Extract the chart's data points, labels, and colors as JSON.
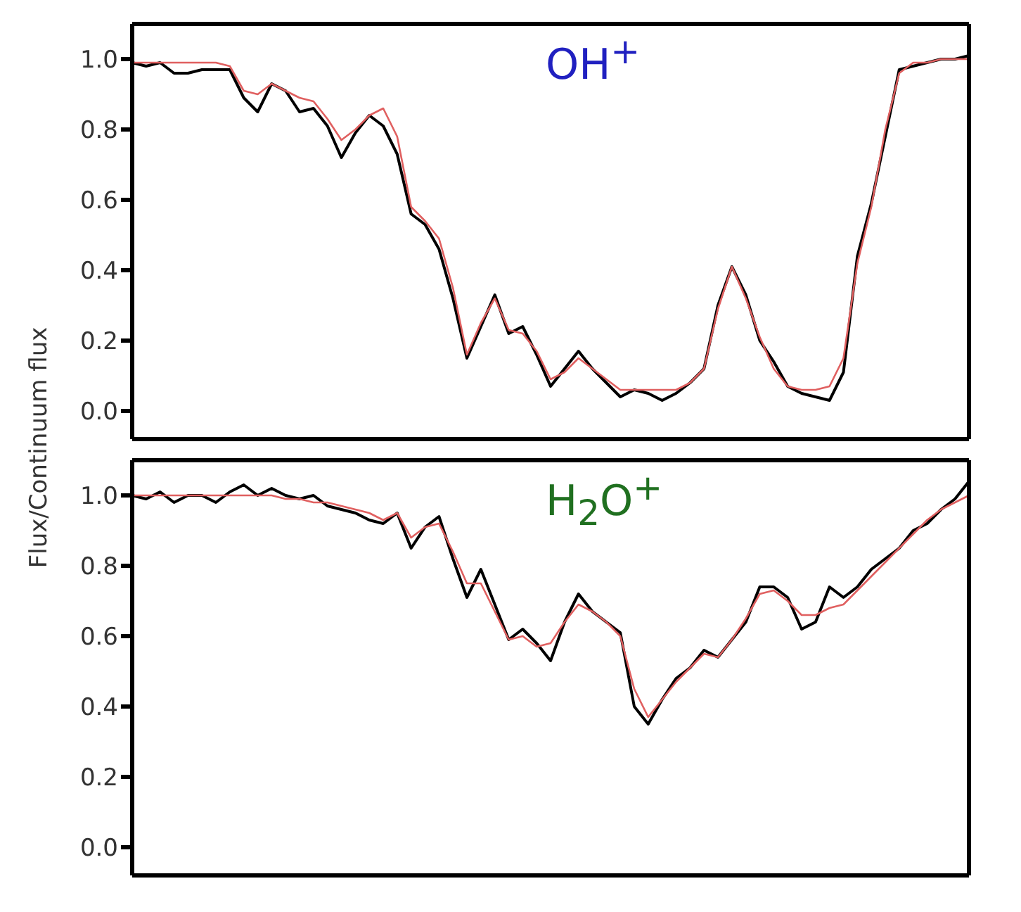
{
  "chart_data": [
    {
      "type": "line",
      "ylabel": "Flux/Continuum flux",
      "annotations": [
        "OH$^{+}$"
      ],
      "tick_labels": "y",
      "ylim": [
        -0.08,
        1.1
      ],
      "yticks": [
        {
          "value": 0,
          "label": "0.0"
        },
        {
          "value": 0.2,
          "label": "0.2"
        },
        {
          "value": 0.4,
          "label": "0.4"
        },
        {
          "value": 0.6,
          "label": "0.6"
        },
        {
          "value": 0.8,
          "label": "0.8"
        },
        {
          "value": 1,
          "label": "1.0"
        }
      ],
      "categories": [
        null,
        null,
        null,
        null,
        null,
        null,
        null,
        null,
        null,
        null,
        null,
        null,
        null,
        null,
        null,
        null,
        null,
        null,
        null,
        null,
        null,
        null,
        null,
        null,
        null,
        null,
        null,
        null,
        null,
        null,
        null,
        null,
        null,
        null,
        null,
        null,
        null,
        null,
        null,
        null,
        null,
        null,
        null,
        null,
        null,
        null,
        null,
        null,
        null,
        null,
        null,
        null,
        null,
        null,
        null,
        null,
        null,
        null,
        null,
        null,
        null
      ],
      "series": [
        {
          "color": "#000000",
          "values": [
            0.99,
            0.98,
            0.99,
            0.96,
            0.96,
            0.97,
            0.97,
            0.97,
            0.89,
            0.85,
            0.93,
            0.91,
            0.85,
            0.86,
            0.81,
            0.72,
            0.79,
            0.84,
            0.81,
            0.73,
            0.56,
            0.53,
            0.46,
            0.32,
            0.15,
            0.24,
            0.33,
            0.22,
            0.24,
            0.16,
            0.07,
            0.12,
            0.17,
            0.12,
            0.08,
            0.04,
            0.06,
            0.05,
            0.03,
            0.05,
            0.08,
            0.12,
            0.3,
            0.41,
            0.33,
            0.2,
            0.14,
            0.07,
            0.05,
            0.04,
            0.03,
            0.11,
            0.44,
            0.59,
            0.78,
            0.97,
            0.98,
            0.99,
            1.0,
            1.0,
            1.01
          ]
        },
        {
          "color": "#e06060",
          "values": [
            0.99,
            0.99,
            0.99,
            0.99,
            0.99,
            0.99,
            0.99,
            0.98,
            0.91,
            0.9,
            0.93,
            0.91,
            0.89,
            0.88,
            0.83,
            0.77,
            0.8,
            0.84,
            0.86,
            0.78,
            0.58,
            0.54,
            0.49,
            0.35,
            0.16,
            0.25,
            0.32,
            0.23,
            0.22,
            0.17,
            0.09,
            0.11,
            0.15,
            0.12,
            0.09,
            0.06,
            0.06,
            0.06,
            0.06,
            0.06,
            0.08,
            0.12,
            0.29,
            0.41,
            0.32,
            0.21,
            0.12,
            0.07,
            0.06,
            0.06,
            0.07,
            0.15,
            0.42,
            0.58,
            0.8,
            0.96,
            0.99,
            0.99,
            1.0,
            1.0,
            1.0
          ]
        }
      ]
    },
    {
      "type": "line",
      "annotations": [
        "H$_{2}$O$^{+}$"
      ],
      "tick_labels": "y",
      "ylim": [
        -0.08,
        1.1
      ],
      "yticks": [
        {
          "value": 0,
          "label": "0.0"
        },
        {
          "value": 0.2,
          "label": "0.2"
        },
        {
          "value": 0.4,
          "label": "0.4"
        },
        {
          "value": 0.6,
          "label": "0.6"
        },
        {
          "value": 0.8,
          "label": "0.8"
        },
        {
          "value": 1,
          "label": "1.0"
        }
      ],
      "categories": [
        null,
        null,
        null,
        null,
        null,
        null,
        null,
        null,
        null,
        null,
        null,
        null,
        null,
        null,
        null,
        null,
        null,
        null,
        null,
        null,
        null,
        null,
        null,
        null,
        null,
        null,
        null,
        null,
        null,
        null,
        null,
        null,
        null,
        null,
        null,
        null,
        null,
        null,
        null,
        null,
        null,
        null,
        null,
        null,
        null,
        null,
        null,
        null,
        null,
        null,
        null,
        null,
        null,
        null,
        null,
        null,
        null,
        null,
        null,
        null,
        null
      ],
      "series": [
        {
          "color": "#000000",
          "values": [
            1.0,
            0.99,
            1.01,
            0.98,
            1.0,
            1.0,
            0.98,
            1.01,
            1.03,
            1.0,
            1.02,
            1.0,
            0.99,
            1.0,
            0.97,
            0.96,
            0.95,
            0.93,
            0.92,
            0.95,
            0.85,
            0.91,
            0.94,
            0.82,
            0.71,
            0.79,
            0.69,
            0.59,
            0.62,
            0.58,
            0.53,
            0.64,
            0.72,
            0.67,
            0.64,
            0.61,
            0.4,
            0.35,
            0.42,
            0.48,
            0.51,
            0.56,
            0.54,
            0.59,
            0.64,
            0.74,
            0.74,
            0.71,
            0.62,
            0.64,
            0.74,
            0.71,
            0.74,
            0.79,
            0.82,
            0.85,
            0.9,
            0.92,
            0.96,
            0.99,
            1.04
          ]
        },
        {
          "color": "#e06060",
          "values": [
            1.0,
            1.0,
            1.0,
            1.0,
            1.0,
            1.0,
            1.0,
            1.0,
            1.0,
            1.0,
            1.0,
            0.99,
            0.99,
            0.98,
            0.98,
            0.97,
            0.96,
            0.95,
            0.93,
            0.95,
            0.88,
            0.91,
            0.92,
            0.84,
            0.75,
            0.75,
            0.67,
            0.59,
            0.6,
            0.57,
            0.58,
            0.64,
            0.69,
            0.67,
            0.64,
            0.6,
            0.45,
            0.37,
            0.42,
            0.47,
            0.51,
            0.55,
            0.54,
            0.59,
            0.65,
            0.72,
            0.73,
            0.7,
            0.66,
            0.66,
            0.68,
            0.69,
            0.73,
            0.77,
            0.81,
            0.85,
            0.89,
            0.93,
            0.96,
            0.98,
            1.0
          ]
        }
      ]
    }
  ]
}
